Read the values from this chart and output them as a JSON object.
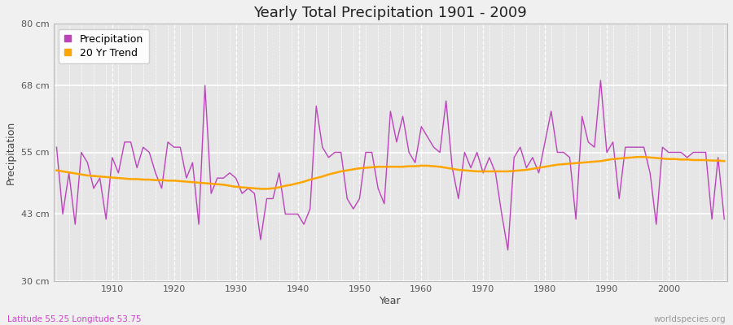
{
  "title": "Yearly Total Precipitation 1901 - 2009",
  "xlabel": "Year",
  "ylabel": "Precipitation",
  "subtitle": "Latitude 55.25 Longitude 53.75",
  "watermark": "worldspecies.org",
  "years": [
    1901,
    1902,
    1903,
    1904,
    1905,
    1906,
    1907,
    1908,
    1909,
    1910,
    1911,
    1912,
    1913,
    1914,
    1915,
    1916,
    1917,
    1918,
    1919,
    1920,
    1921,
    1922,
    1923,
    1924,
    1925,
    1926,
    1927,
    1928,
    1929,
    1930,
    1931,
    1932,
    1933,
    1934,
    1935,
    1936,
    1937,
    1938,
    1939,
    1940,
    1941,
    1942,
    1943,
    1944,
    1945,
    1946,
    1947,
    1948,
    1949,
    1950,
    1951,
    1952,
    1953,
    1954,
    1955,
    1956,
    1957,
    1958,
    1959,
    1960,
    1961,
    1962,
    1963,
    1964,
    1965,
    1966,
    1967,
    1968,
    1969,
    1970,
    1971,
    1972,
    1973,
    1974,
    1975,
    1976,
    1977,
    1978,
    1979,
    1980,
    1981,
    1982,
    1983,
    1984,
    1985,
    1986,
    1987,
    1988,
    1989,
    1990,
    1991,
    1992,
    1993,
    1994,
    1995,
    1996,
    1997,
    1998,
    1999,
    2000,
    2001,
    2002,
    2003,
    2004,
    2005,
    2006,
    2007,
    2008,
    2009
  ],
  "precip": [
    56,
    43,
    51,
    41,
    55,
    53,
    48,
    50,
    42,
    54,
    51,
    57,
    57,
    52,
    56,
    55,
    51,
    48,
    57,
    56,
    56,
    50,
    53,
    41,
    68,
    47,
    50,
    50,
    51,
    50,
    47,
    48,
    47,
    38,
    46,
    46,
    51,
    43,
    43,
    43,
    41,
    44,
    64,
    56,
    54,
    55,
    55,
    46,
    44,
    46,
    55,
    55,
    48,
    45,
    63,
    57,
    62,
    55,
    53,
    60,
    58,
    56,
    55,
    65,
    52,
    46,
    55,
    52,
    55,
    51,
    54,
    51,
    43,
    36,
    54,
    56,
    52,
    54,
    51,
    57,
    63,
    55,
    55,
    54,
    42,
    62,
    57,
    56,
    69,
    55,
    57,
    46,
    56,
    56,
    56,
    56,
    51,
    41,
    56,
    55,
    55,
    55,
    54,
    55,
    55,
    55,
    42,
    54,
    42
  ],
  "trend": [
    51.5,
    51.3,
    51.1,
    50.9,
    50.7,
    50.5,
    50.4,
    50.3,
    50.2,
    50.1,
    50.0,
    49.9,
    49.8,
    49.8,
    49.7,
    49.7,
    49.6,
    49.6,
    49.5,
    49.5,
    49.4,
    49.3,
    49.2,
    49.1,
    49.0,
    48.9,
    48.8,
    48.7,
    48.5,
    48.3,
    48.2,
    48.1,
    48.0,
    47.9,
    47.9,
    48.0,
    48.2,
    48.5,
    48.7,
    49.0,
    49.3,
    49.7,
    50.0,
    50.3,
    50.7,
    51.0,
    51.3,
    51.5,
    51.7,
    51.9,
    52.0,
    52.1,
    52.2,
    52.2,
    52.2,
    52.2,
    52.2,
    52.3,
    52.3,
    52.4,
    52.4,
    52.3,
    52.2,
    52.0,
    51.8,
    51.6,
    51.5,
    51.4,
    51.3,
    51.3,
    51.3,
    51.3,
    51.3,
    51.3,
    51.4,
    51.5,
    51.6,
    51.8,
    52.0,
    52.2,
    52.4,
    52.6,
    52.7,
    52.8,
    52.9,
    53.0,
    53.1,
    53.2,
    53.3,
    53.5,
    53.7,
    53.8,
    53.9,
    54.0,
    54.1,
    54.1,
    54.0,
    53.9,
    53.8,
    53.7,
    53.7,
    53.6,
    53.6,
    53.5,
    53.5,
    53.5,
    53.4,
    53.4,
    53.3
  ],
  "precip_color": "#bb44bb",
  "trend_color": "#ffa500",
  "fig_bg_color": "#f0f0f0",
  "plot_bg_color": "#e6e6e6",
  "grid_color": "#ffffff",
  "ylim": [
    30,
    80
  ],
  "yticks": [
    30,
    43,
    55,
    68,
    80
  ],
  "ytick_labels": [
    "30 cm",
    "43 cm",
    "55 cm",
    "68 cm",
    "80 cm"
  ],
  "xticks": [
    1910,
    1920,
    1930,
    1940,
    1950,
    1960,
    1970,
    1980,
    1990,
    2000
  ],
  "title_fontsize": 13,
  "label_fontsize": 9,
  "tick_fontsize": 8,
  "subtitle_color": "#cc44cc",
  "watermark_color": "#999999"
}
